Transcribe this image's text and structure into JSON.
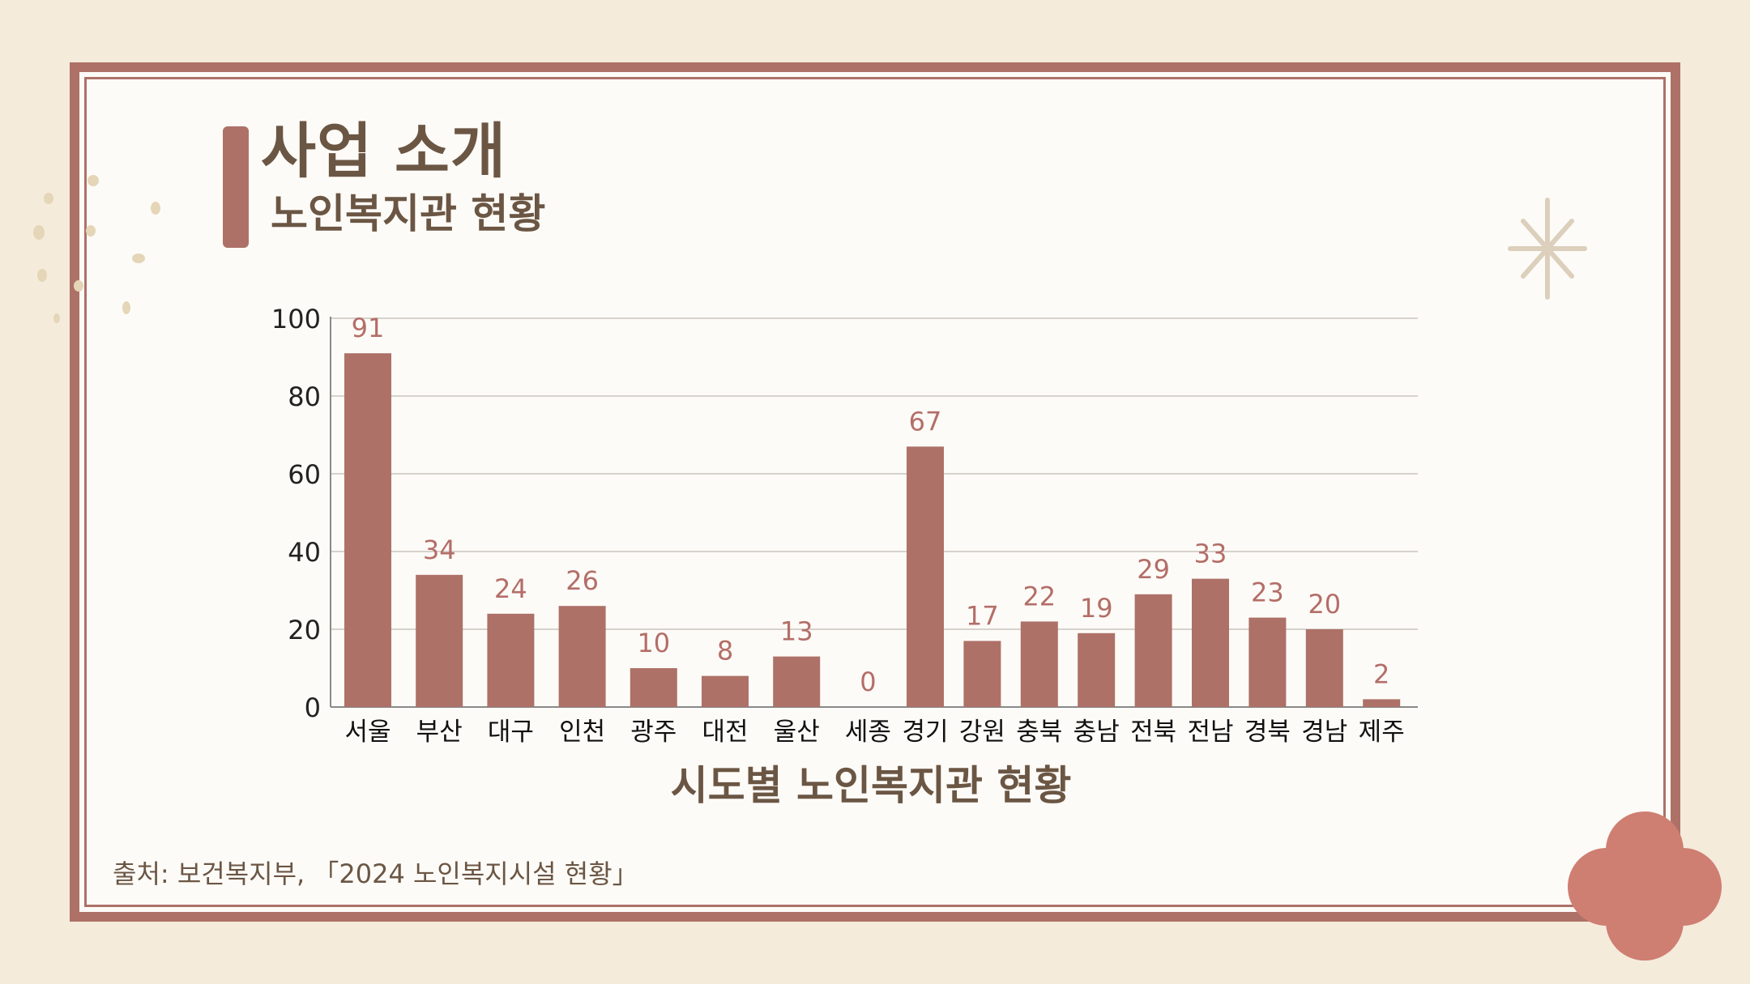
{
  "slide": {
    "title": "사업 소개",
    "subtitle": "노인복지관 현황",
    "source": "출처: 보건복지부, 「2024 노인복지시설 현황」"
  },
  "colors": {
    "background": "#f5ebdb",
    "panel": "#fdfbf7",
    "accent": "#ad7168",
    "text": "#6b5644",
    "label": "#b46e68",
    "flower": "#cf7e72",
    "sparkle": "#dccfbc"
  },
  "icons": [
    "dots-decoration",
    "sparkle-icon",
    "flower-icon"
  ],
  "chart_data": {
    "type": "bar",
    "title": "시도별 노인복지관 현황",
    "xlabel": "시도별 노인복지관 현황",
    "ylabel": "",
    "categories": [
      "서울",
      "부산",
      "대구",
      "인천",
      "광주",
      "대전",
      "울산",
      "세종",
      "경기",
      "강원",
      "충북",
      "충남",
      "전북",
      "전남",
      "경북",
      "경남",
      "제주"
    ],
    "values": [
      91,
      34,
      24,
      26,
      10,
      8,
      13,
      0,
      67,
      17,
      22,
      19,
      29,
      33,
      23,
      20,
      2
    ],
    "yticks": [
      0,
      20,
      40,
      60,
      80,
      100
    ],
    "ylim": [
      0,
      100
    ],
    "grid": true,
    "data_labels": true,
    "legend": "none"
  }
}
